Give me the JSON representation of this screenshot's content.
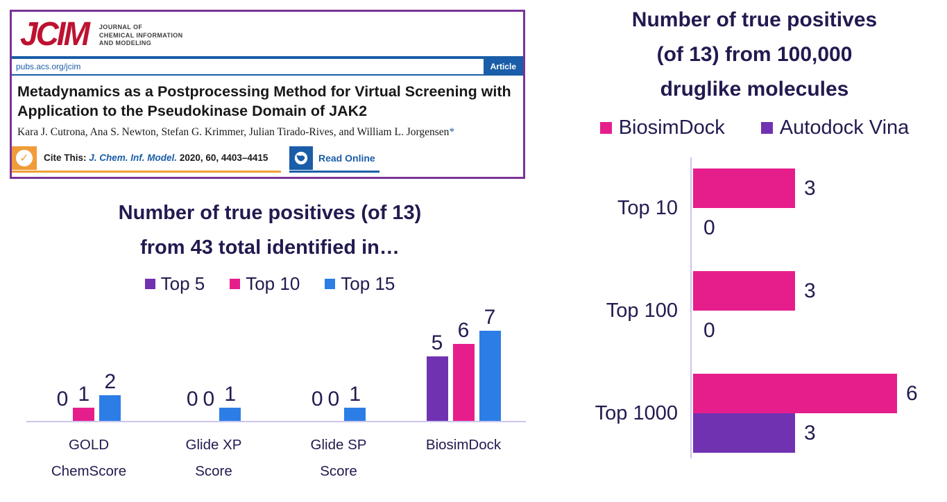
{
  "article": {
    "logo": "JCIM",
    "journal_name_lines": [
      "Journal of",
      "Chemical Information",
      "and Modeling"
    ],
    "url": "pubs.acs.org/jcim",
    "badge": "Article",
    "title": "Metadynamics as a Postprocessing Method for Virtual Screening with Application to the Pseudokinase Domain of JAK2",
    "authors": "Kara J. Cutrona, Ana S. Newton, Stefan G. Krimmer, Julian Tirado-Rives, and William L. Jorgensen",
    "authors_mark": "*",
    "cite_label": "Cite This:",
    "cite_journal": "J. Chem. Inf. Model.",
    "cite_ref": "2020, 60, 4403–4415",
    "read_online_label": "Read Online",
    "check_icon": "✓"
  },
  "colors": {
    "pink": "#E61E8C",
    "purple": "#7132B2",
    "blue": "#2D7DE6",
    "navy": "#221A4F",
    "axis": "#CBC5EC",
    "card_border": "#7A3397",
    "jcim_red": "#BE1231",
    "acs_blue": "#1A5DA8",
    "orange": "#F09C38"
  },
  "chart_data": [
    {
      "type": "bar",
      "orientation": "vertical",
      "title": "Number of true positives (of 13) from 43 total identified in…",
      "title_lines": [
        "Number of true positives (of 13)",
        "from 43 total identified in…"
      ],
      "categories": [
        "GOLD ChemScore",
        "Glide XP Score",
        "Glide SP Score",
        "BiosimDock"
      ],
      "x_label_lines": [
        [
          "GOLD",
          "ChemScore"
        ],
        [
          "Glide XP",
          "Score"
        ],
        [
          "Glide SP",
          "Score"
        ],
        [
          "BiosimDock"
        ]
      ],
      "series": [
        {
          "name": "Top 5",
          "color": "#7132B2",
          "values": [
            0,
            0,
            0,
            5
          ]
        },
        {
          "name": "Top 10",
          "color": "#E61E8C",
          "values": [
            1,
            0,
            0,
            6
          ]
        },
        {
          "name": "Top 15",
          "color": "#2D7DE6",
          "values": [
            2,
            1,
            1,
            7
          ]
        }
      ],
      "data_labels": true,
      "legend_position": "top",
      "grid": false,
      "ylim": [
        0,
        7
      ]
    },
    {
      "type": "bar",
      "orientation": "horizontal",
      "title": "Number of true positives (of 13) from 100,000 druglike molecules",
      "title_lines": [
        "Number of true positives",
        "(of 13) from 100,000",
        "druglike molecules"
      ],
      "categories": [
        "Top 10",
        "Top 100",
        "Top 1000"
      ],
      "series": [
        {
          "name": "BiosimDock",
          "color": "#E61E8C",
          "values": [
            3,
            3,
            6
          ]
        },
        {
          "name": "Autodock Vina",
          "color": "#7132B2",
          "values": [
            0,
            0,
            3
          ]
        }
      ],
      "data_labels": true,
      "legend_position": "top",
      "grid": false,
      "xlim": [
        0,
        7
      ]
    }
  ]
}
